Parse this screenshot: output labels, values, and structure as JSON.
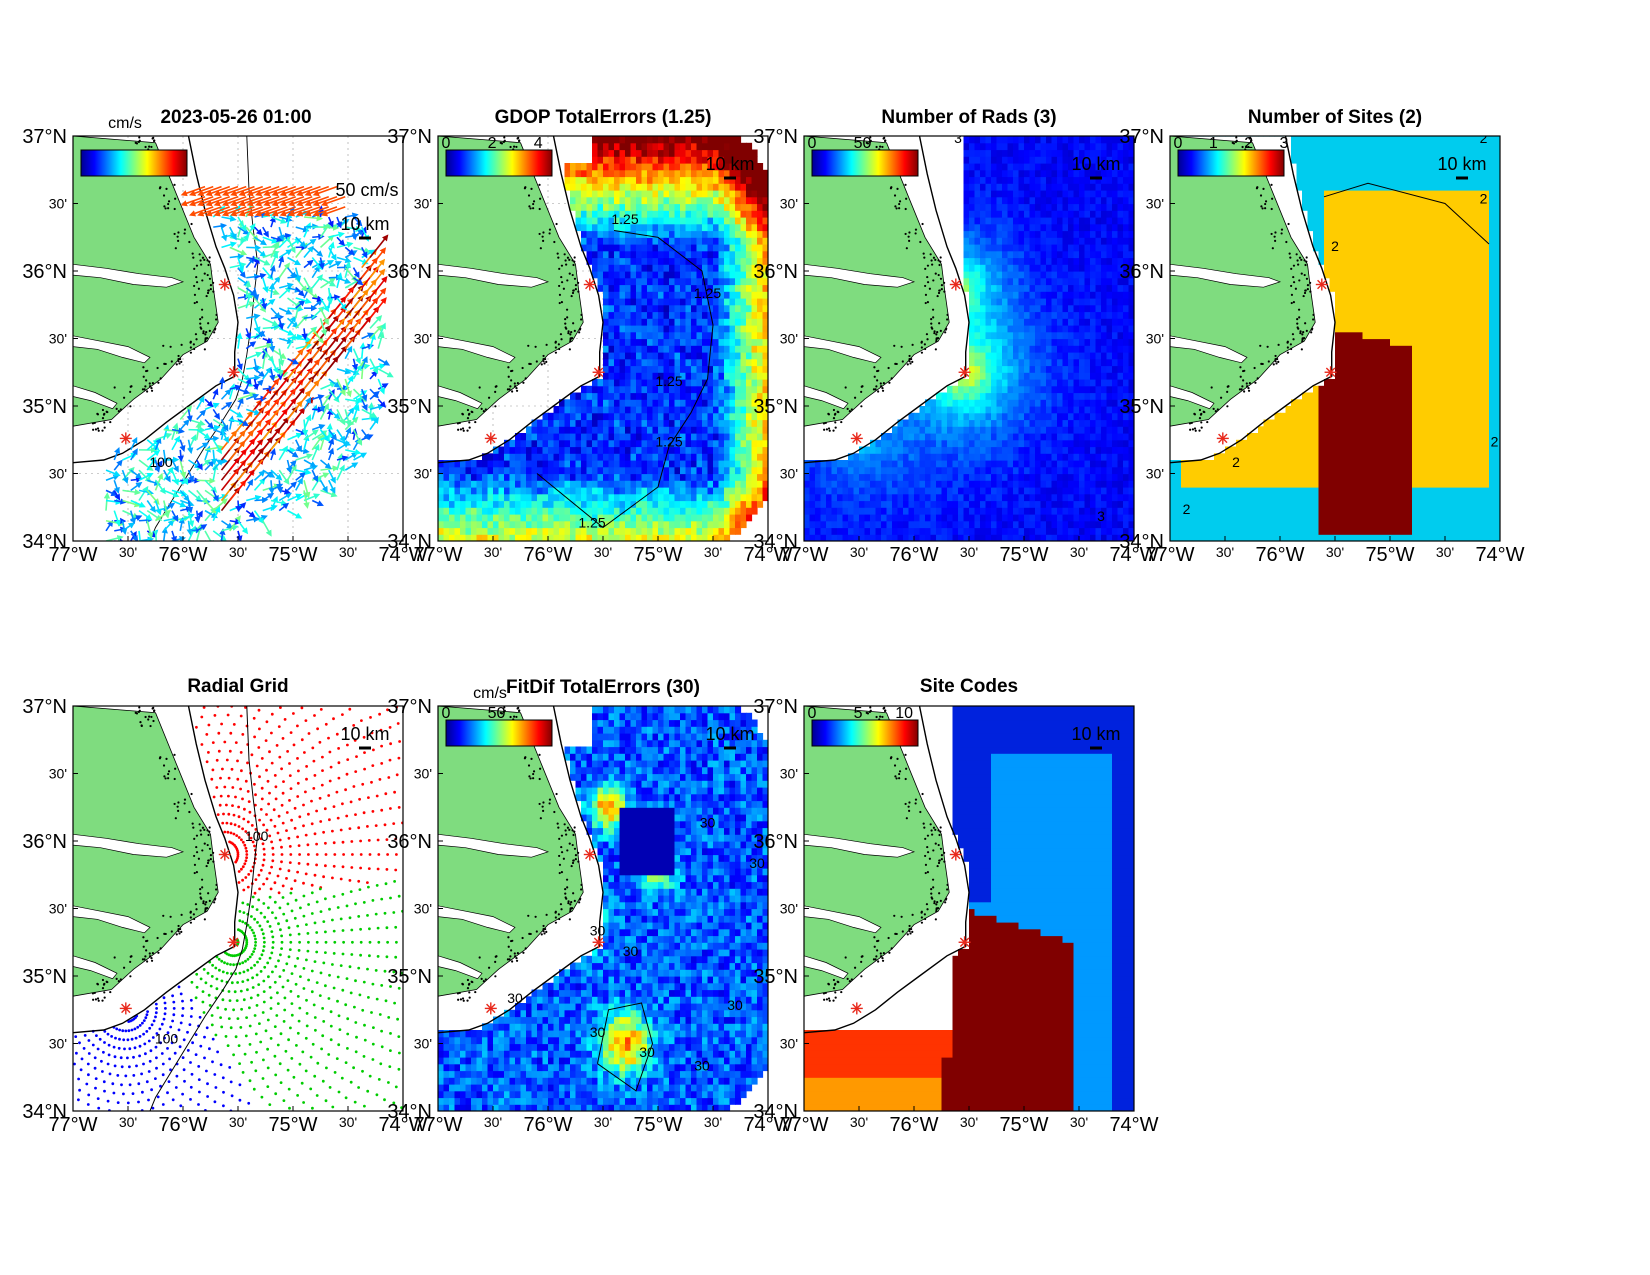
{
  "colors": {
    "land": "#7fdc7f",
    "coast": "#000000",
    "site_marker": "#e8291c",
    "grid_site_1": "#ff0000",
    "grid_site_2": "#00cc00",
    "grid_site_3": "#0000ff",
    "axis": "#000000"
  },
  "colormap": "jet",
  "axes_labels": {
    "lat": [
      "37°N",
      "30'",
      "36°N",
      "30'",
      "35°N",
      "30'",
      "34°N"
    ],
    "lon": [
      "77°W",
      "30'",
      "76°W",
      "30'",
      "75°W",
      "30'",
      "74°W"
    ]
  },
  "scale_bar_label": "10 km",
  "panels": [
    {
      "id": "velocity",
      "title": "2023-05-26 01:00",
      "colorbar_unit": "cm/s",
      "colorbar_ticks": [],
      "vector_scale_label": "50 cm/s",
      "contour_labels": [
        "100"
      ]
    },
    {
      "id": "gdop",
      "title": "GDOP TotalErrors (1.25)",
      "colorbar_ticks": [
        "0",
        "2",
        "4"
      ],
      "contour_labels": [
        "1.25",
        "1.25",
        "1.25",
        "1.25",
        "1.25"
      ]
    },
    {
      "id": "nrads",
      "title": "Number of Rads (3)",
      "colorbar_ticks": [
        "0",
        "50"
      ],
      "contour_labels": [
        "3",
        "3"
      ]
    },
    {
      "id": "nsites",
      "title": "Number of Sites (2)",
      "colorbar_ticks": [
        "0",
        "1",
        "2",
        "3"
      ],
      "contour_labels": [
        "2",
        "2",
        "2",
        "2",
        "2",
        "2"
      ]
    },
    {
      "id": "radgrid",
      "title": "Radial Grid",
      "contour_labels": [
        "100",
        "100"
      ]
    },
    {
      "id": "fitdif",
      "title": "FitDif TotalErrors (30)",
      "colorbar_unit": "cm/s",
      "colorbar_ticks": [
        "0",
        "50"
      ],
      "contour_labels": [
        "30",
        "30",
        "30",
        "30",
        "30",
        "30",
        "30",
        "30",
        "30"
      ]
    },
    {
      "id": "sitecodes",
      "title": "Site Codes",
      "colorbar_ticks": [
        "0",
        "5",
        "10"
      ]
    }
  ]
}
